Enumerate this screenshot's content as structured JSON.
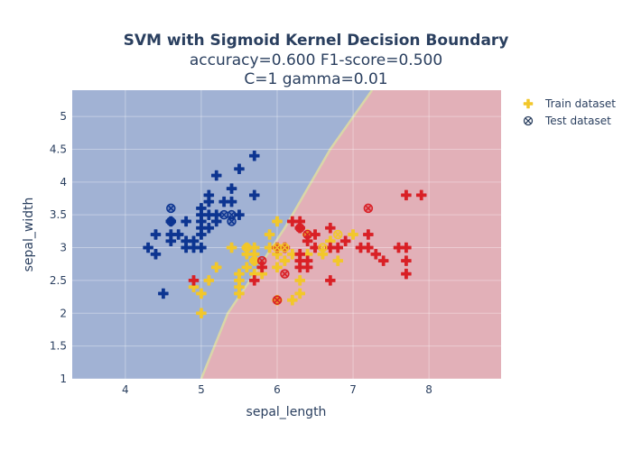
{
  "chart_data": {
    "type": "scatter",
    "title": "SVM with Sigmoid Kernel Decision Boundary",
    "subtitle_lines": [
      "accuracy=0.600 F1-score=0.500",
      "C=1 gamma=0.01"
    ],
    "xlabel": "sepal_length",
    "ylabel": "sepal_width",
    "xlim": [
      3.3,
      8.95
    ],
    "ylim": [
      1.0,
      5.4
    ],
    "x_ticks": [
      4,
      5,
      6,
      7,
      8
    ],
    "y_ticks": [
      1,
      1.5,
      2,
      2.5,
      3,
      3.5,
      4,
      4.5,
      5
    ],
    "grid": true,
    "legend_position": "top-right",
    "background_regions": {
      "description_free": true,
      "left_color": "#a1b2d4",
      "right_color": "#e2b0b8",
      "boundary_points": [
        [
          5.0,
          1.0
        ],
        [
          5.35,
          2.0
        ],
        [
          5.7,
          2.6
        ],
        [
          6.1,
          3.3
        ],
        [
          6.7,
          4.5
        ],
        [
          7.25,
          5.4
        ]
      ],
      "boundary_color": "#d9d6a8"
    },
    "class_colors": {
      "setosa": "#0d3591",
      "versicolor": "#f2c72a",
      "virginica": "#d92026"
    },
    "series": [
      {
        "name": "Train dataset",
        "marker": "cross",
        "legend_color": "#f2c72a",
        "points": [
          {
            "x": 4.3,
            "y": 3.0,
            "c": "setosa"
          },
          {
            "x": 4.4,
            "y": 2.9,
            "c": "setosa"
          },
          {
            "x": 4.4,
            "y": 3.2,
            "c": "setosa"
          },
          {
            "x": 4.6,
            "y": 3.1,
            "c": "setosa"
          },
          {
            "x": 4.6,
            "y": 3.2,
            "c": "setosa"
          },
          {
            "x": 4.6,
            "y": 3.4,
            "c": "setosa"
          },
          {
            "x": 4.7,
            "y": 3.2,
            "c": "setosa"
          },
          {
            "x": 4.8,
            "y": 3.0,
            "c": "setosa"
          },
          {
            "x": 4.8,
            "y": 3.1,
            "c": "setosa"
          },
          {
            "x": 4.8,
            "y": 3.4,
            "c": "setosa"
          },
          {
            "x": 4.9,
            "y": 3.0,
            "c": "setosa"
          },
          {
            "x": 4.9,
            "y": 3.1,
            "c": "setosa"
          },
          {
            "x": 5.0,
            "y": 3.0,
            "c": "setosa"
          },
          {
            "x": 5.0,
            "y": 3.2,
            "c": "setosa"
          },
          {
            "x": 5.0,
            "y": 3.3,
            "c": "setosa"
          },
          {
            "x": 5.0,
            "y": 3.4,
            "c": "setosa"
          },
          {
            "x": 5.0,
            "y": 3.5,
            "c": "setosa"
          },
          {
            "x": 5.0,
            "y": 3.6,
            "c": "setosa"
          },
          {
            "x": 5.1,
            "y": 3.3,
            "c": "setosa"
          },
          {
            "x": 5.1,
            "y": 3.5,
            "c": "setosa"
          },
          {
            "x": 5.1,
            "y": 3.7,
            "c": "setosa"
          },
          {
            "x": 5.1,
            "y": 3.8,
            "c": "setosa"
          },
          {
            "x": 5.2,
            "y": 3.4,
            "c": "setosa"
          },
          {
            "x": 5.2,
            "y": 3.5,
            "c": "setosa"
          },
          {
            "x": 5.2,
            "y": 4.1,
            "c": "setosa"
          },
          {
            "x": 5.3,
            "y": 3.7,
            "c": "setosa"
          },
          {
            "x": 5.4,
            "y": 3.7,
            "c": "setosa"
          },
          {
            "x": 5.4,
            "y": 3.9,
            "c": "setosa"
          },
          {
            "x": 5.5,
            "y": 3.5,
            "c": "setosa"
          },
          {
            "x": 5.5,
            "y": 4.2,
            "c": "setosa"
          },
          {
            "x": 5.7,
            "y": 3.8,
            "c": "setosa"
          },
          {
            "x": 5.7,
            "y": 4.4,
            "c": "setosa"
          },
          {
            "x": 4.5,
            "y": 2.3,
            "c": "setosa"
          },
          {
            "x": 4.9,
            "y": 2.4,
            "c": "versicolor"
          },
          {
            "x": 5.0,
            "y": 2.0,
            "c": "versicolor"
          },
          {
            "x": 5.0,
            "y": 2.3,
            "c": "versicolor"
          },
          {
            "x": 5.1,
            "y": 2.5,
            "c": "versicolor"
          },
          {
            "x": 5.2,
            "y": 2.7,
            "c": "versicolor"
          },
          {
            "x": 5.4,
            "y": 3.0,
            "c": "versicolor"
          },
          {
            "x": 5.5,
            "y": 2.3,
            "c": "versicolor"
          },
          {
            "x": 5.5,
            "y": 2.4,
            "c": "versicolor"
          },
          {
            "x": 5.5,
            "y": 2.5,
            "c": "versicolor"
          },
          {
            "x": 5.5,
            "y": 2.6,
            "c": "versicolor"
          },
          {
            "x": 5.6,
            "y": 2.7,
            "c": "versicolor"
          },
          {
            "x": 5.6,
            "y": 2.9,
            "c": "versicolor"
          },
          {
            "x": 5.6,
            "y": 3.0,
            "c": "versicolor"
          },
          {
            "x": 5.7,
            "y": 2.6,
            "c": "versicolor"
          },
          {
            "x": 5.7,
            "y": 2.8,
            "c": "versicolor"
          },
          {
            "x": 5.7,
            "y": 2.9,
            "c": "versicolor"
          },
          {
            "x": 5.7,
            "y": 3.0,
            "c": "versicolor"
          },
          {
            "x": 5.8,
            "y": 2.6,
            "c": "versicolor"
          },
          {
            "x": 5.8,
            "y": 2.7,
            "c": "versicolor"
          },
          {
            "x": 5.9,
            "y": 3.0,
            "c": "versicolor"
          },
          {
            "x": 5.9,
            "y": 3.2,
            "c": "versicolor"
          },
          {
            "x": 6.0,
            "y": 2.2,
            "c": "versicolor"
          },
          {
            "x": 6.0,
            "y": 2.7,
            "c": "versicolor"
          },
          {
            "x": 6.0,
            "y": 2.9,
            "c": "versicolor"
          },
          {
            "x": 6.0,
            "y": 3.4,
            "c": "versicolor"
          },
          {
            "x": 6.1,
            "y": 2.8,
            "c": "versicolor"
          },
          {
            "x": 6.1,
            "y": 3.0,
            "c": "versicolor"
          },
          {
            "x": 6.2,
            "y": 2.2,
            "c": "versicolor"
          },
          {
            "x": 6.2,
            "y": 2.9,
            "c": "versicolor"
          },
          {
            "x": 6.3,
            "y": 2.3,
            "c": "versicolor"
          },
          {
            "x": 6.3,
            "y": 2.5,
            "c": "versicolor"
          },
          {
            "x": 6.4,
            "y": 2.9,
            "c": "versicolor"
          },
          {
            "x": 6.4,
            "y": 3.2,
            "c": "versicolor"
          },
          {
            "x": 6.6,
            "y": 2.9,
            "c": "versicolor"
          },
          {
            "x": 6.7,
            "y": 3.0,
            "c": "versicolor"
          },
          {
            "x": 6.7,
            "y": 3.1,
            "c": "versicolor"
          },
          {
            "x": 6.8,
            "y": 2.8,
            "c": "versicolor"
          },
          {
            "x": 7.0,
            "y": 3.2,
            "c": "versicolor"
          },
          {
            "x": 4.9,
            "y": 2.5,
            "c": "virginica"
          },
          {
            "x": 5.7,
            "y": 2.5,
            "c": "virginica"
          },
          {
            "x": 5.8,
            "y": 2.7,
            "c": "virginica"
          },
          {
            "x": 6.0,
            "y": 3.0,
            "c": "virginica"
          },
          {
            "x": 6.1,
            "y": 3.0,
            "c": "virginica"
          },
          {
            "x": 6.2,
            "y": 3.4,
            "c": "virginica"
          },
          {
            "x": 6.3,
            "y": 2.7,
            "c": "virginica"
          },
          {
            "x": 6.3,
            "y": 2.8,
            "c": "virginica"
          },
          {
            "x": 6.3,
            "y": 2.9,
            "c": "virginica"
          },
          {
            "x": 6.3,
            "y": 3.3,
            "c": "virginica"
          },
          {
            "x": 6.3,
            "y": 3.4,
            "c": "virginica"
          },
          {
            "x": 6.4,
            "y": 2.7,
            "c": "virginica"
          },
          {
            "x": 6.4,
            "y": 2.8,
            "c": "virginica"
          },
          {
            "x": 6.4,
            "y": 3.1,
            "c": "virginica"
          },
          {
            "x": 6.5,
            "y": 3.0,
            "c": "virginica"
          },
          {
            "x": 6.5,
            "y": 3.2,
            "c": "virginica"
          },
          {
            "x": 6.7,
            "y": 2.5,
            "c": "virginica"
          },
          {
            "x": 6.7,
            "y": 3.0,
            "c": "virginica"
          },
          {
            "x": 6.7,
            "y": 3.3,
            "c": "virginica"
          },
          {
            "x": 6.8,
            "y": 3.0,
            "c": "virginica"
          },
          {
            "x": 6.9,
            "y": 3.1,
            "c": "virginica"
          },
          {
            "x": 7.1,
            "y": 3.0,
            "c": "virginica"
          },
          {
            "x": 7.2,
            "y": 3.0,
            "c": "virginica"
          },
          {
            "x": 7.2,
            "y": 3.2,
            "c": "virginica"
          },
          {
            "x": 7.3,
            "y": 2.9,
            "c": "virginica"
          },
          {
            "x": 7.4,
            "y": 2.8,
            "c": "virginica"
          },
          {
            "x": 7.6,
            "y": 3.0,
            "c": "virginica"
          },
          {
            "x": 7.7,
            "y": 2.6,
            "c": "virginica"
          },
          {
            "x": 7.7,
            "y": 2.8,
            "c": "virginica"
          },
          {
            "x": 7.7,
            "y": 3.0,
            "c": "virginica"
          },
          {
            "x": 7.7,
            "y": 3.8,
            "c": "virginica"
          },
          {
            "x": 7.9,
            "y": 3.8,
            "c": "virginica"
          }
        ]
      },
      {
        "name": "Test dataset",
        "marker": "x-circle",
        "legend_color": "#2a3f5f",
        "points": [
          {
            "x": 4.6,
            "y": 3.4,
            "c": "setosa"
          },
          {
            "x": 4.6,
            "y": 3.6,
            "c": "setosa"
          },
          {
            "x": 5.4,
            "y": 3.4,
            "c": "setosa"
          },
          {
            "x": 5.4,
            "y": 3.5,
            "c": "setosa"
          },
          {
            "x": 5.3,
            "y": 3.5,
            "c": "setosa"
          },
          {
            "x": 5.6,
            "y": 3.0,
            "c": "versicolor"
          },
          {
            "x": 5.7,
            "y": 2.8,
            "c": "versicolor"
          },
          {
            "x": 6.1,
            "y": 3.0,
            "c": "versicolor"
          },
          {
            "x": 6.0,
            "y": 3.0,
            "c": "versicolor"
          },
          {
            "x": 6.6,
            "y": 3.0,
            "c": "versicolor"
          },
          {
            "x": 6.8,
            "y": 3.2,
            "c": "versicolor"
          },
          {
            "x": 6.0,
            "y": 2.2,
            "c": "virginica"
          },
          {
            "x": 6.1,
            "y": 2.6,
            "c": "virginica"
          },
          {
            "x": 5.8,
            "y": 2.8,
            "c": "virginica"
          },
          {
            "x": 6.3,
            "y": 3.3,
            "c": "virginica"
          },
          {
            "x": 6.4,
            "y": 3.2,
            "c": "virginica"
          },
          {
            "x": 7.2,
            "y": 3.6,
            "c": "virginica"
          }
        ]
      }
    ]
  }
}
